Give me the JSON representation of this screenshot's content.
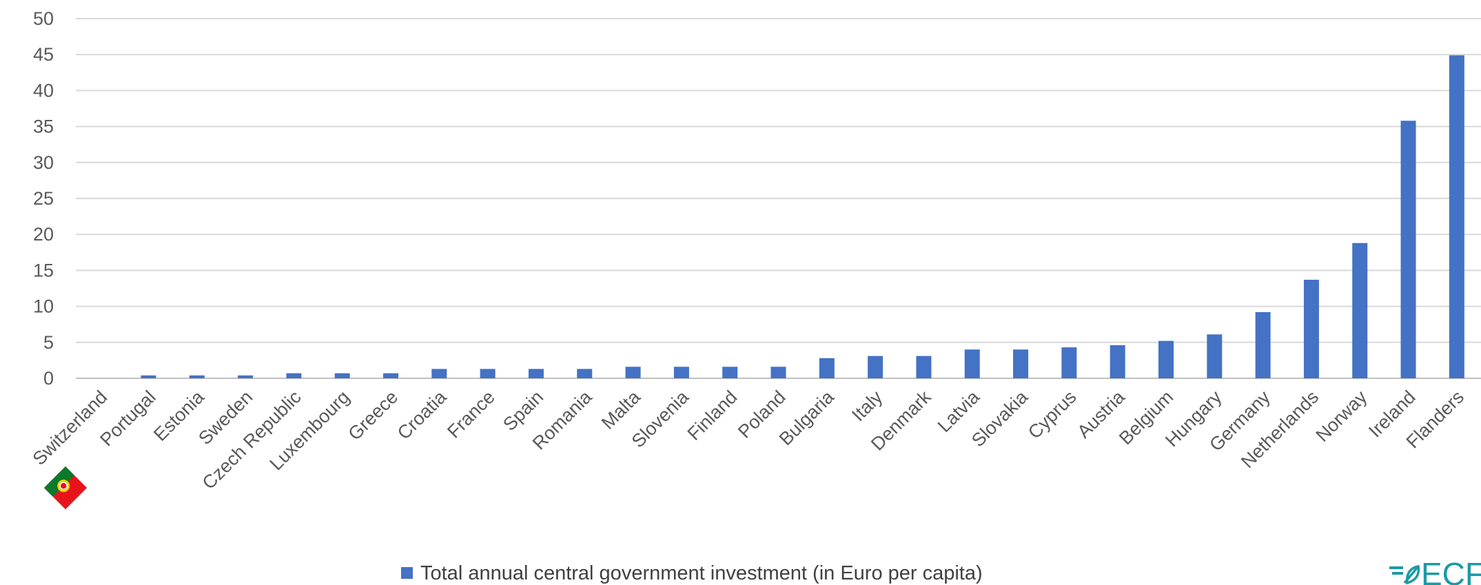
{
  "chart_data": {
    "type": "bar",
    "categories": [
      "Switzerland",
      "Portugal",
      "Estonia",
      "Sweden",
      "Czech Republic",
      "Luxembourg",
      "Greece",
      "Croatia",
      "France",
      "Spain",
      "Romania",
      "Malta",
      "Slovenia",
      "Finland",
      "Poland",
      "Bulgaria",
      "Italy",
      "Denmark",
      "Latvia",
      "Slovakia",
      "Cyprus",
      "Austria",
      "Belgium",
      "Hungary",
      "Germany",
      "Netherlands",
      "Norway",
      "Ireland",
      "Flanders"
    ],
    "series": [
      {
        "name": "Total annual central government investment (in Euro per capita)",
        "values": [
          0,
          0.4,
          0.4,
          0.4,
          0.7,
          0.7,
          0.7,
          1.3,
          1.3,
          1.3,
          1.3,
          1.6,
          1.6,
          1.6,
          1.6,
          2.8,
          3.1,
          3.1,
          4.0,
          4.0,
          4.3,
          4.6,
          5.2,
          6.1,
          9.2,
          13.7,
          18.8,
          35.8,
          44.9
        ]
      }
    ],
    "yticks": [
      "0",
      "5",
      "10",
      "15",
      "20",
      "25",
      "30",
      "35",
      "40",
      "45",
      "50"
    ],
    "ylim": [
      0,
      50
    ],
    "grid": true,
    "legend_position": "bottom",
    "bar_color": "#4472c4"
  },
  "highlight_flag": {
    "icon": "portugal-flag-icon",
    "category": "Portugal"
  },
  "logo": {
    "icon": "ecf-logo-icon",
    "text": "ECF",
    "color": "#1a9aa6"
  }
}
